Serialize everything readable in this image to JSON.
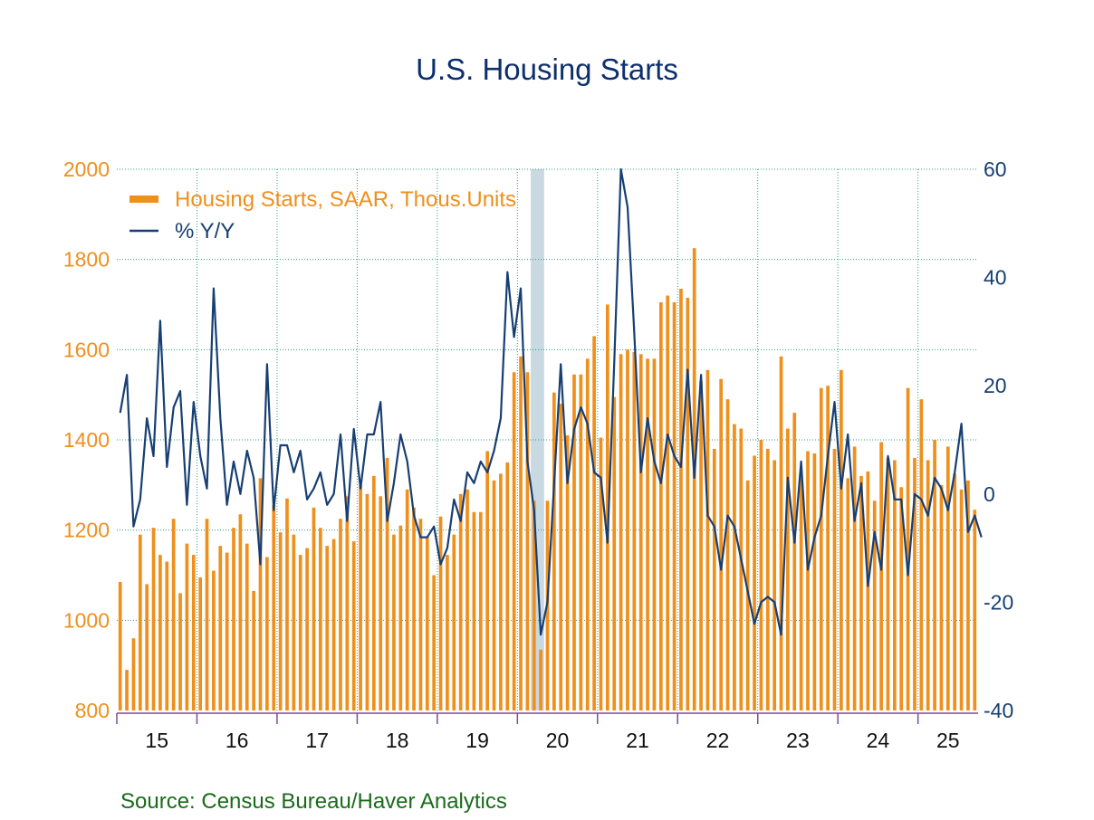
{
  "title": "U.S. Housing Starts",
  "source": "Source:  Census Bureau/Haver Analytics",
  "colors": {
    "bars": "#ef8f1c",
    "line": "#173f73",
    "left_axis_text": "#ef8f1c",
    "right_axis_text": "#173f73",
    "grid": "#2e9c80",
    "axis": "#7c4b9a",
    "recession_band": "#c8d9e2"
  },
  "chart_data": {
    "type": "bar+line",
    "legend_position": "top-left",
    "grid": true,
    "x_tick_labels": [
      "15",
      "16",
      "17",
      "18",
      "19",
      "20",
      "21",
      "22",
      "23",
      "24",
      "25"
    ],
    "x_range": [
      "2015-01",
      "2025-09"
    ],
    "recession_shading": [
      "2020-03",
      "2020-04"
    ],
    "left_axis": {
      "ylim": [
        800,
        2000
      ],
      "ticks": [
        "800",
        "1000",
        "1200",
        "1400",
        "1600",
        "1800",
        "2000"
      ]
    },
    "right_axis": {
      "ylim": [
        -40,
        60
      ],
      "ticks": [
        "-40",
        "-20",
        "0",
        "20",
        "40",
        "60"
      ]
    },
    "series": [
      {
        "name": "Housing Starts, SAAR, Thous.Units",
        "kind": "bar",
        "axis": "left",
        "start": "2015-01",
        "values": [
          1085,
          890,
          960,
          1190,
          1080,
          1205,
          1145,
          1130,
          1225,
          1060,
          1170,
          1145,
          1095,
          1225,
          1110,
          1165,
          1150,
          1205,
          1235,
          1170,
          1065,
          1315,
          1140,
          1255,
          1195,
          1270,
          1190,
          1145,
          1160,
          1250,
          1205,
          1165,
          1180,
          1225,
          1275,
          1175,
          1300,
          1280,
          1320,
          1275,
          1360,
          1190,
          1210,
          1290,
          1250,
          1225,
          1185,
          1100,
          1230,
          1145,
          1190,
          1280,
          1290,
          1240,
          1240,
          1375,
          1310,
          1325,
          1350,
          1550,
          1585,
          1550,
          1265,
          935,
          1265,
          1505,
          1480,
          1410,
          1545,
          1545,
          1580,
          1630,
          1405,
          1700,
          1495,
          1590,
          1600,
          1595,
          1590,
          1580,
          1580,
          1705,
          1720,
          1705,
          1735,
          1715,
          1825,
          1530,
          1555,
          1380,
          1535,
          1490,
          1435,
          1425,
          1310,
          1365,
          1400,
          1380,
          1355,
          1585,
          1425,
          1460,
          1320,
          1375,
          1370,
          1515,
          1520,
          1380,
          1555,
          1315,
          1385,
          1320,
          1330,
          1265,
          1395,
          1360,
          1355,
          1295,
          1515,
          1360,
          1490,
          1355,
          1400,
          1300,
          1385,
          1325,
          1290,
          1310,
          1245
        ]
      },
      {
        "name": "% Y/Y",
        "kind": "line",
        "axis": "right",
        "start": "2015-01",
        "values": [
          15,
          22,
          -6,
          -1,
          14,
          7,
          32,
          5,
          16,
          19,
          -2,
          17,
          7,
          1,
          38,
          14,
          -2,
          6,
          0,
          8,
          3,
          -13,
          24,
          -3,
          9,
          9,
          4,
          8,
          -1,
          1,
          4,
          -2,
          0,
          11,
          -5,
          12,
          1,
          11,
          11,
          17,
          -5,
          2,
          11,
          6,
          -4,
          -8,
          -8,
          -6,
          -13,
          -10,
          -1,
          -5,
          4,
          2,
          6,
          4,
          8,
          14,
          41,
          29,
          38,
          6,
          -3,
          -26,
          -20,
          2,
          24,
          2,
          12,
          16,
          13,
          4,
          3,
          -9,
          24,
          60,
          53,
          30,
          4,
          14,
          6,
          2,
          11,
          7,
          5,
          23,
          3,
          22,
          -4,
          -6,
          -14,
          -4,
          -6,
          -12,
          -18,
          -24,
          -20,
          -19,
          -20,
          -26,
          3,
          -9,
          6,
          -14,
          -8,
          -4,
          7,
          17,
          1,
          11,
          -5,
          2,
          -17,
          -7,
          -14,
          7,
          -1,
          -1,
          -15,
          0,
          -1,
          -4,
          3,
          1,
          -3,
          4,
          13,
          -7,
          -4,
          -8
        ]
      }
    ]
  }
}
